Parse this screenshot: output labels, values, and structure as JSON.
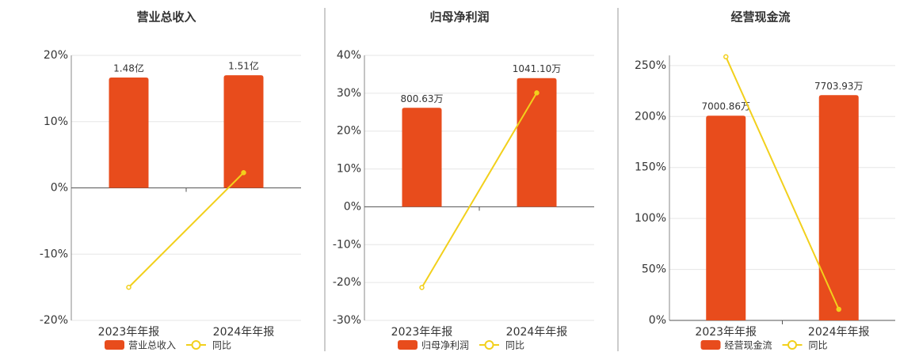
{
  "chart_data": [
    {
      "type": "bar",
      "title": "营业总收入",
      "categories": [
        "2023年年报",
        "2024年年报"
      ],
      "series": [
        {
          "name": "营业总收入",
          "type": "bar",
          "color": "#e84c1c",
          "values": [
            148000000,
            151000000
          ],
          "value_labels": [
            "1.48亿",
            "1.51亿"
          ]
        },
        {
          "name": "同比",
          "type": "line",
          "color": "#f2d01c",
          "values": [
            -15.0,
            2.3
          ]
        }
      ],
      "ylim": [
        -20,
        20
      ],
      "yticks": [
        {
          "value": -20,
          "label": "-20%"
        },
        {
          "value": -10,
          "label": "-10%"
        },
        {
          "value": 0,
          "label": "0%"
        },
        {
          "value": 10,
          "label": "10%"
        },
        {
          "value": 20,
          "label": "20%"
        }
      ],
      "grid": true
    },
    {
      "type": "bar",
      "title": "归母净利润",
      "categories": [
        "2023年年报",
        "2024年年报"
      ],
      "series": [
        {
          "name": "归母净利润",
          "type": "bar",
          "color": "#e84c1c",
          "values": [
            8006300,
            10411000
          ],
          "value_labels": [
            "800.63万",
            "1041.10万"
          ]
        },
        {
          "name": "同比",
          "type": "line",
          "color": "#f2d01c",
          "values": [
            -21.3,
            30.1
          ]
        }
      ],
      "ylim": [
        -30,
        40
      ],
      "yticks": [
        {
          "value": -30,
          "label": "-30%"
        },
        {
          "value": -20,
          "label": "-20%"
        },
        {
          "value": -10,
          "label": "-10%"
        },
        {
          "value": 0,
          "label": "0%"
        },
        {
          "value": 10,
          "label": "10%"
        },
        {
          "value": 20,
          "label": "20%"
        },
        {
          "value": 30,
          "label": "30%"
        },
        {
          "value": 40,
          "label": "40%"
        }
      ],
      "grid": true
    },
    {
      "type": "bar",
      "title": "经营现金流",
      "categories": [
        "2023年年报",
        "2024年年报"
      ],
      "series": [
        {
          "name": "经营现金流",
          "type": "bar",
          "color": "#e84c1c",
          "values": [
            70008600,
            77039300
          ],
          "value_labels": [
            "7000.86万",
            "7703.93万"
          ]
        },
        {
          "name": "同比",
          "type": "line",
          "color": "#f2d01c",
          "values": [
            258.6,
            10.9
          ]
        }
      ],
      "ylim": [
        0,
        260
      ],
      "yticks": [
        {
          "value": 0,
          "label": "0%"
        },
        {
          "value": 50,
          "label": "50%"
        },
        {
          "value": 100,
          "label": "100%"
        },
        {
          "value": 150,
          "label": "150%"
        },
        {
          "value": 200,
          "label": "200%"
        },
        {
          "value": 250,
          "label": "250%"
        }
      ],
      "grid": true
    }
  ]
}
